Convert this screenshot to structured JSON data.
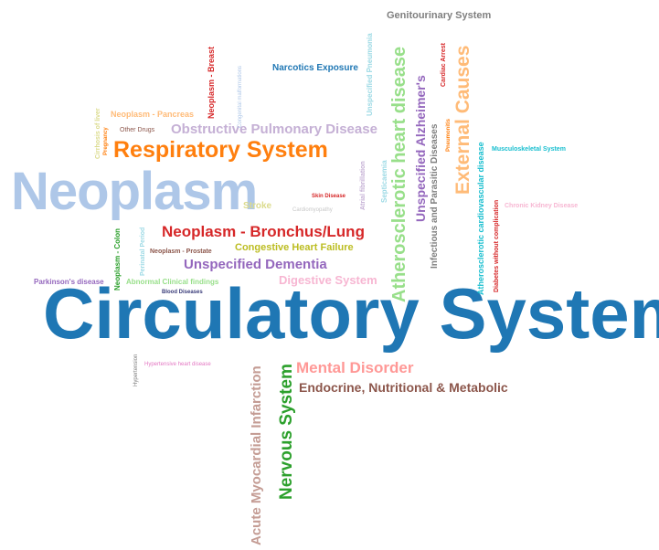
{
  "words": [
    {
      "id": "circulatory-system",
      "text": "Circulatory System",
      "color": "#1f77b4",
      "vertical": false
    },
    {
      "id": "neoplasm",
      "text": "Neoplasm",
      "color": "#aec7e8",
      "vertical": false
    },
    {
      "id": "respiratory-system",
      "text": "Respiratory System",
      "color": "#ff7f0e",
      "vertical": false
    },
    {
      "id": "obstructive-pulmonary-disease",
      "text": "Obstructive Pulmonary Disease",
      "color": "#c5b0d5",
      "vertical": false
    },
    {
      "id": "neoplasm-bronchus-lung",
      "text": "Neoplasm - Bronchus/Lung",
      "color": "#d62728",
      "vertical": false
    },
    {
      "id": "congestive-heart-failure",
      "text": "Congestive Heart Failure",
      "color": "#bcbd22",
      "vertical": false
    },
    {
      "id": "unspecified-dementia",
      "text": "Unspecified Dementia",
      "color": "#9467bd",
      "vertical": false
    },
    {
      "id": "digestive-system",
      "text": "Digestive System",
      "color": "#f7b6d2",
      "vertical": false
    },
    {
      "id": "mental-disorder",
      "text": "Mental Disorder",
      "color": "#ff9896",
      "vertical": false
    },
    {
      "id": "endocrine-nutritional-metabolic",
      "text": "Endocrine, Nutritional & Metabolic",
      "color": "#8c564b",
      "vertical": false
    },
    {
      "id": "genitourinary-system",
      "text": "Genitourinary System",
      "color": "#7f7f7f",
      "vertical": false
    },
    {
      "id": "narcotics-exposure",
      "text": "Narcotics Exposure",
      "color": "#1f77b4",
      "vertical": false
    },
    {
      "id": "neoplasm-pancreas",
      "text": "Neoplasm - Pancreas",
      "color": "#ffbb78",
      "vertical": false
    },
    {
      "id": "other-drugs",
      "text": "Other Drugs",
      "color": "#8c564b",
      "vertical": false
    },
    {
      "id": "stroke",
      "text": "Stroke",
      "color": "#dbdb8d",
      "vertical": false
    },
    {
      "id": "skin-disease",
      "text": "Skin Disease",
      "color": "#d62728",
      "vertical": false
    },
    {
      "id": "cardiomyopathy",
      "text": "Cardiomyopathy",
      "color": "#c7c7c7",
      "vertical": false
    },
    {
      "id": "musculoskeletal-system",
      "text": "Musculoskeletal System",
      "color": "#17becf",
      "vertical": false
    },
    {
      "id": "chronic-kidney-disease",
      "text": "Chronic Kidney Disease",
      "color": "#f7b6d2",
      "vertical": false
    },
    {
      "id": "neoplasm-prostate",
      "text": "Neoplasm - Prostate",
      "color": "#8c564b",
      "vertical": false
    },
    {
      "id": "parkinsons-disease",
      "text": "Parkinson's disease",
      "color": "#9467bd",
      "vertical": false
    },
    {
      "id": "abnormal-clinical-findings",
      "text": "Abnormal Clinical findings",
      "color": "#98df8a",
      "vertical": false
    },
    {
      "id": "blood-diseases",
      "text": "Blood Diseases",
      "color": "#393b79",
      "vertical": false
    },
    {
      "id": "hypertensive-heart-disease",
      "text": "Hypertensive heart disease",
      "color": "#e377c2",
      "vertical": false
    },
    {
      "id": "atherosclerotic-heart-disease",
      "text": "Atherosclerotic heart disease",
      "color": "#98df8a",
      "vertical": true
    },
    {
      "id": "unspecified-alzheimers",
      "text": "Unspecified Alzheimer's",
      "color": "#9467bd",
      "vertical": true
    },
    {
      "id": "external-causes",
      "text": "External Causes",
      "color": "#ffbb78",
      "vertical": true
    },
    {
      "id": "infectious-parasitic-diseases",
      "text": "Infectious and Parasitic Diseases",
      "color": "#7f7f7f",
      "vertical": true
    },
    {
      "id": "atherosclerotic-cardiovascular-disease",
      "text": "Atherosclerotic cardiovascular disease",
      "color": "#17becf",
      "vertical": true
    },
    {
      "id": "diabetes-without-complication",
      "text": "Diabetes without complication",
      "color": "#d62728",
      "vertical": true
    },
    {
      "id": "nervous-system",
      "text": "Nervous System",
      "color": "#2ca02c",
      "vertical": true
    },
    {
      "id": "acute-myocardial-infarction",
      "text": "Acute Myocardial Infarction",
      "color": "#c49c94",
      "vertical": true
    },
    {
      "id": "unspecified-pneumonia",
      "text": "Unspecified Pneumonia",
      "color": "#9edae5",
      "vertical": true
    },
    {
      "id": "cardiac-arrest",
      "text": "Cardiac Arrest",
      "color": "#d62728",
      "vertical": true
    },
    {
      "id": "pneumonitis",
      "text": "Pneumonitis",
      "color": "#ff7f0e",
      "vertical": true
    },
    {
      "id": "neoplasm-breast",
      "text": "Neoplasm - Breast",
      "color": "#d62728",
      "vertical": true
    },
    {
      "id": "congenital-malformations",
      "text": "Congenital malformations",
      "color": "#aec7e8",
      "vertical": true
    },
    {
      "id": "cirrhosis-of-liver",
      "text": "Cirrhosis of liver",
      "color": "#dbdb8d",
      "vertical": true
    },
    {
      "id": "pregnancy",
      "text": "Pregnancy",
      "color": "#ff7f0e",
      "vertical": true
    },
    {
      "id": "neoplasm-colon",
      "text": "Neoplasm - Colon",
      "color": "#2ca02c",
      "vertical": true
    },
    {
      "id": "perinatal-period",
      "text": "Perinatal Period",
      "color": "#9edae5",
      "vertical": true
    },
    {
      "id": "atrial-fibrillation",
      "text": "Atrial fibrillation",
      "color": "#c5b0d5",
      "vertical": true
    },
    {
      "id": "septicaemia",
      "text": "Septicaemia",
      "color": "#9edae5",
      "vertical": true
    },
    {
      "id": "hypertension",
      "text": "Hypertension",
      "color": "#7f7f7f",
      "vertical": true
    }
  ]
}
